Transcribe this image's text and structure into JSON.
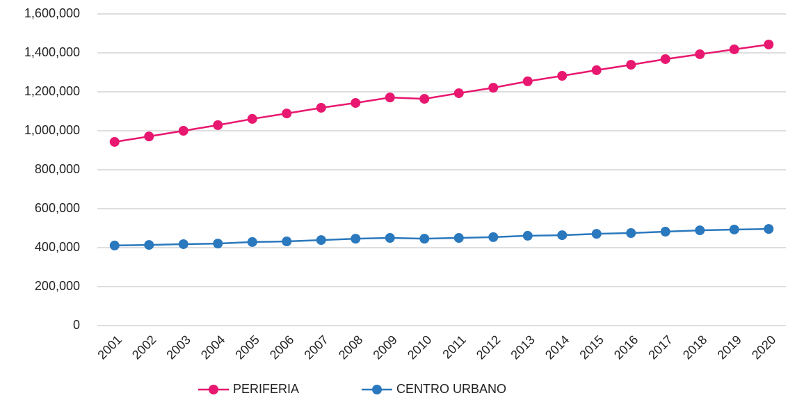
{
  "chart_data": {
    "type": "line",
    "categories": [
      "2001",
      "2002",
      "2003",
      "2004",
      "2005",
      "2006",
      "2007",
      "2008",
      "2009",
      "2010",
      "2011",
      "2012",
      "2013",
      "2014",
      "2015",
      "2016",
      "2017",
      "2018",
      "2019",
      "2020"
    ],
    "series": [
      {
        "name": "PERIFERIA",
        "color": "#e8176f",
        "values": [
          943000,
          971000,
          1000000,
          1029000,
          1061000,
          1089000,
          1118000,
          1143000,
          1171000,
          1164000,
          1193000,
          1221000,
          1254000,
          1282000,
          1311000,
          1339000,
          1368000,
          1393000,
          1418000,
          1443000
        ]
      },
      {
        "name": "CENTRO URBANO",
        "color": "#2a78bd",
        "values": [
          411000,
          414000,
          418000,
          421000,
          429000,
          432000,
          439000,
          446000,
          450000,
          446000,
          450000,
          454000,
          461000,
          464000,
          471000,
          475000,
          482000,
          489000,
          493000,
          496000
        ]
      }
    ],
    "ylim": [
      0,
      1600000
    ],
    "yticks": [
      0,
      {
        "value": 200000,
        "label": "200,000"
      },
      {
        "value": 400000,
        "label": "400,000"
      },
      {
        "value": 600000,
        "label": "600,000"
      },
      {
        "value": 800000,
        "label": "800,000"
      },
      {
        "value": 1000000,
        "label": "1,000,000"
      },
      {
        "value": 1200000,
        "label": "1,200,000"
      },
      {
        "value": 1400000,
        "label": "1,400,000"
      },
      {
        "value": 1600000,
        "label": "1,600,000"
      }
    ],
    "grid": true,
    "legend": "bottom"
  }
}
